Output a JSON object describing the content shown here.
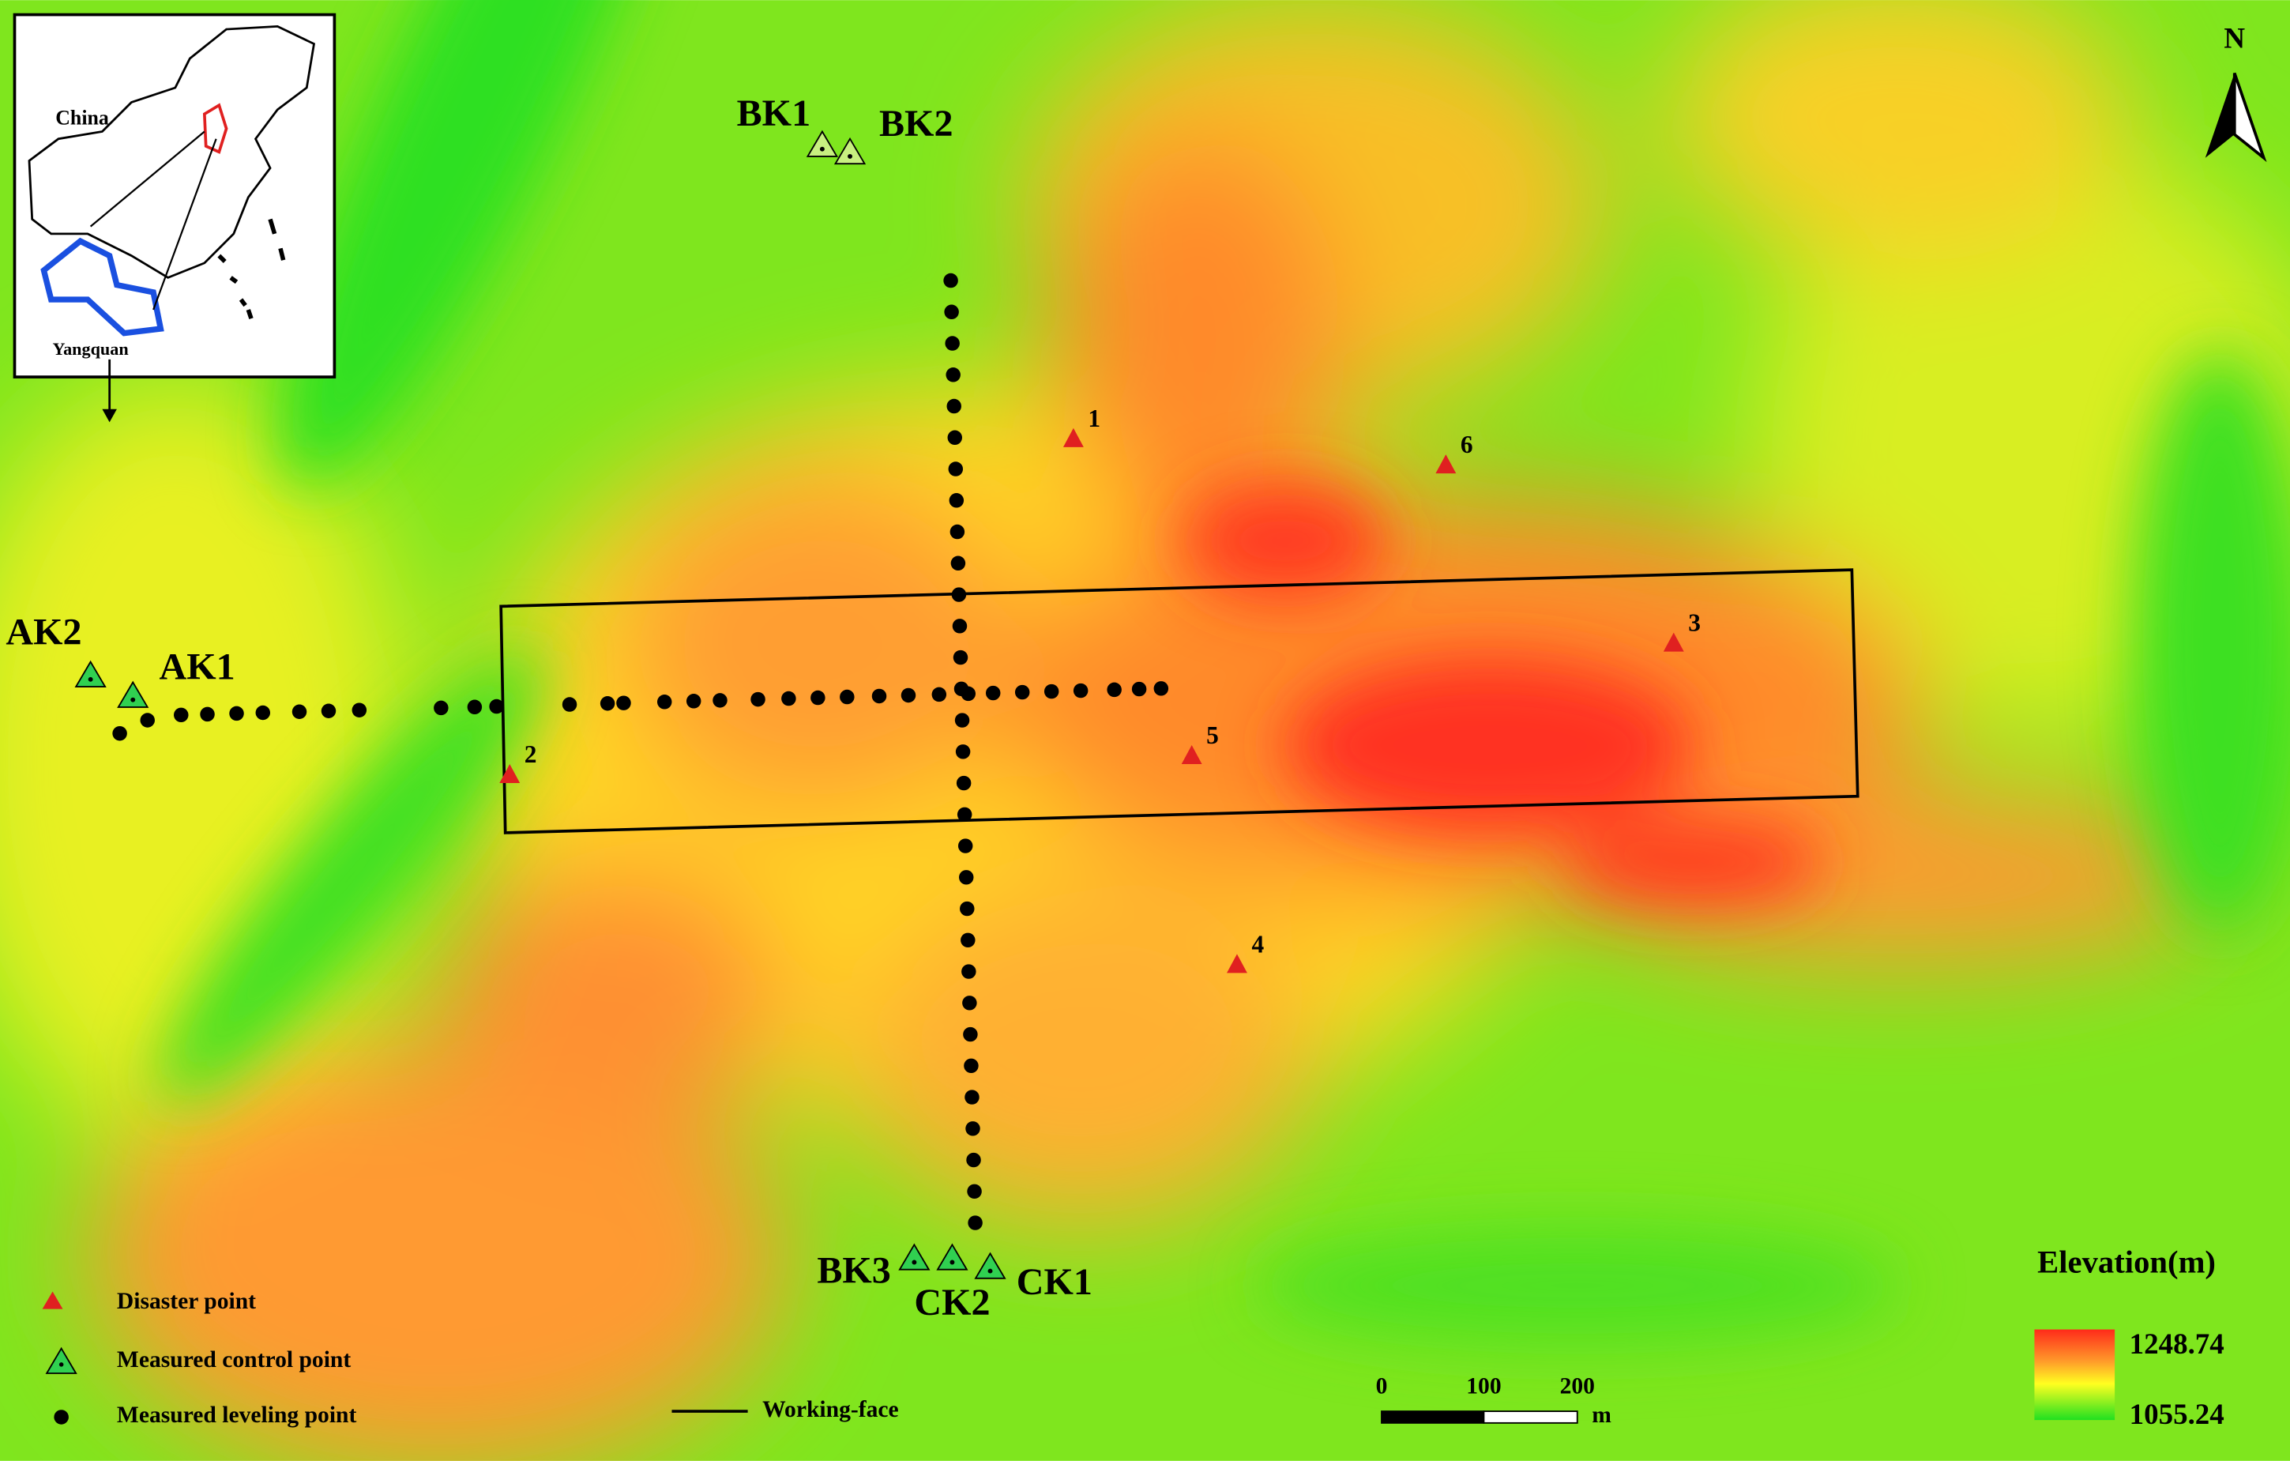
{
  "inset": {
    "country": "China",
    "city": "Yangquan"
  },
  "north": "N",
  "control_points": [
    "BK1",
    "BK2",
    "AK2",
    "AK1",
    "BK3",
    "CK2",
    "CK1"
  ],
  "disaster_points": [
    "1",
    "2",
    "3",
    "4",
    "5",
    "6"
  ],
  "legend": {
    "disaster": "Disaster point",
    "control": "Measured control point",
    "leveling": "Measured leveling point",
    "working_face": "Working-face"
  },
  "scale_bar": {
    "ticks": [
      0,
      100,
      200
    ],
    "unit": "m"
  },
  "elevation_legend": {
    "title": "Elevation(m)",
    "max": 1248.74,
    "min": 1055.24
  }
}
